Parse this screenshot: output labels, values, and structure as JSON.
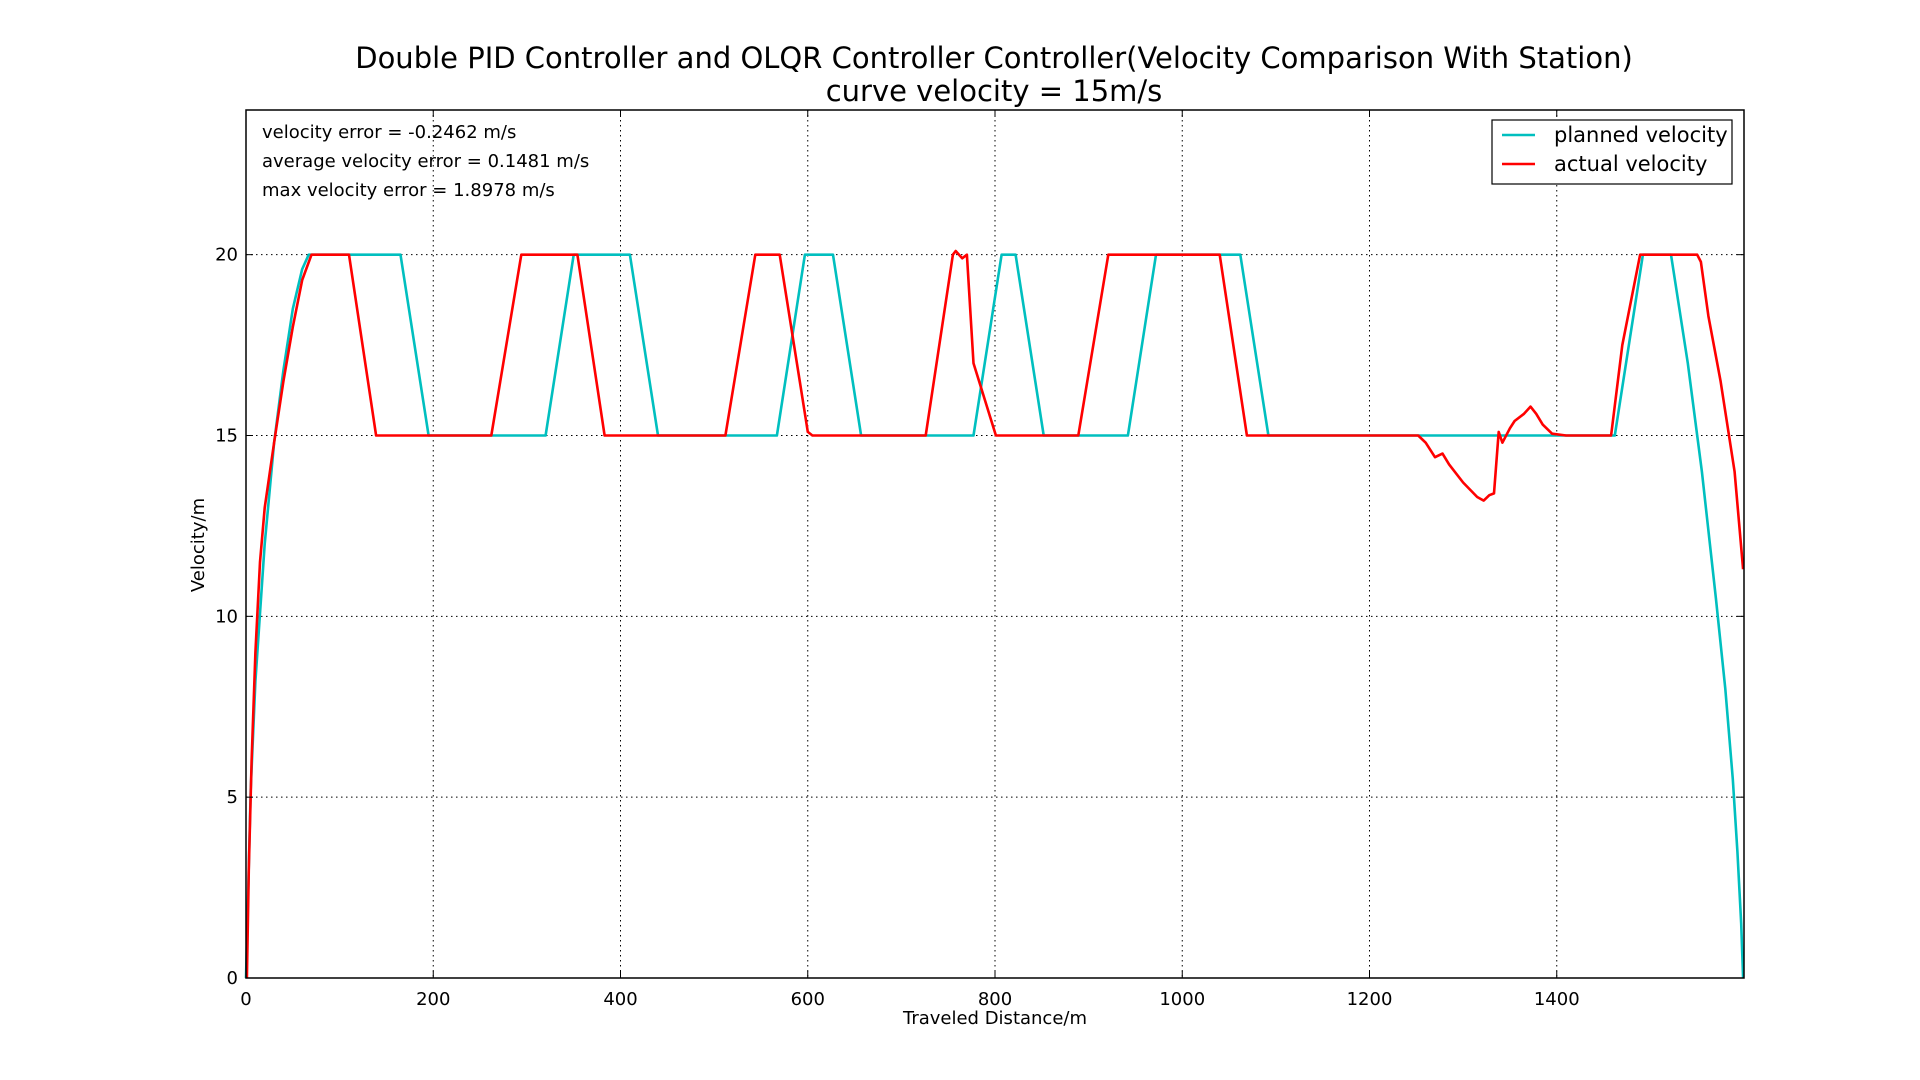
{
  "chart_data": {
    "type": "line",
    "title": "Double PID Controller and OLQR Controller Controller(Velocity Comparison With Station)",
    "subtitle": "curve velocity = 15m/s",
    "xlabel": "Traveled Distance/m",
    "ylabel": "Velocity/m",
    "xlim": [
      0,
      1600
    ],
    "ylim": [
      0,
      24
    ],
    "xticks": [
      "0",
      "200",
      "400",
      "600",
      "800",
      "1000",
      "1200",
      "1400"
    ],
    "yticks": [
      "0",
      "5",
      "10",
      "15",
      "20"
    ],
    "grid": true,
    "legend_position": "top-right",
    "annotations": [
      "velocity error = -0.2462 m/s",
      "average velocity error = 0.1481 m/s",
      "max velocity error = 1.8978 m/s"
    ],
    "series": [
      {
        "name": "planned velocity",
        "color": "#00bfbf",
        "x": [
          0,
          5,
          10,
          20,
          30,
          40,
          50,
          60,
          67,
          165,
          195,
          320,
          350,
          410,
          440,
          567,
          597,
          627,
          657,
          777,
          807,
          822,
          852,
          942,
          972,
          1062,
          1092,
          1462,
          1492,
          1522,
          1540,
          1555,
          1570,
          1580,
          1588,
          1593,
          1597,
          1599
        ],
        "y": [
          0,
          5.2,
          8.2,
          12.0,
          14.8,
          16.8,
          18.5,
          19.6,
          20,
          20,
          15,
          15,
          20,
          20,
          15,
          15,
          20,
          20,
          15,
          15,
          20,
          20,
          15,
          15,
          20,
          20,
          15,
          15,
          20,
          20,
          17,
          14,
          10.5,
          8.0,
          5.5,
          3.5,
          1.5,
          0
        ]
      },
      {
        "name": "actual velocity",
        "color": "#ff0000",
        "x": [
          1,
          3,
          6,
          10,
          15,
          20,
          30,
          40,
          50,
          60,
          70,
          110,
          139,
          145,
          262,
          294,
          354,
          383,
          388,
          512,
          544,
          570,
          600,
          605,
          726,
          755,
          758,
          765,
          770,
          777,
          801,
          889,
          921,
          1040,
          1069,
          1244,
          1252,
          1260,
          1270,
          1278,
          1285,
          1300,
          1315,
          1322,
          1328,
          1333,
          1338,
          1342,
          1350,
          1355,
          1365,
          1372,
          1378,
          1385,
          1395,
          1410,
          1425,
          1458,
          1470,
          1489,
          1495,
          1550,
          1554,
          1562,
          1575,
          1590,
          1599
        ],
        "y": [
          0,
          3,
          6,
          9,
          11.5,
          13,
          14.8,
          16.5,
          18,
          19.3,
          20,
          20,
          15,
          15,
          15,
          20,
          20,
          15,
          15,
          15,
          20,
          20,
          15.1,
          15,
          15,
          20,
          20.1,
          19.9,
          20,
          17,
          15,
          15,
          20,
          20,
          15,
          15,
          15,
          14.8,
          14.4,
          14.5,
          14.2,
          13.7,
          13.3,
          13.2,
          13.35,
          13.4,
          15.1,
          14.8,
          15.2,
          15.4,
          15.6,
          15.8,
          15.6,
          15.3,
          15.05,
          15,
          15,
          15,
          17.5,
          20,
          20,
          20,
          19.8,
          18.3,
          16.5,
          14,
          11.3
        ]
      }
    ]
  }
}
